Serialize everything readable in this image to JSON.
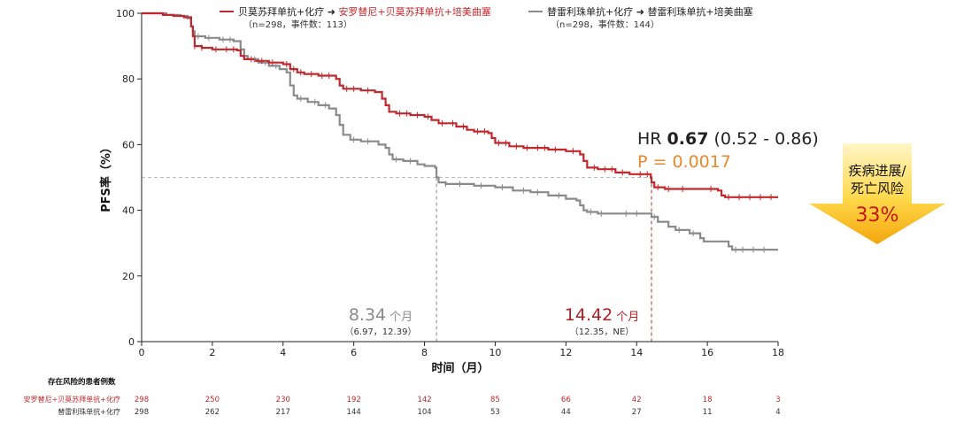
{
  "chart_data": {
    "type": "line",
    "subtype": "kaplan-meier",
    "title": "",
    "xlabel": "时间（月）",
    "ylabel": "PFS率（%）",
    "xlim": [
      0,
      18
    ],
    "ylim": [
      0,
      100
    ],
    "x_ticks": [
      0,
      2,
      4,
      6,
      8,
      10,
      12,
      14,
      16,
      18
    ],
    "y_ticks": [
      0,
      20,
      40,
      60,
      80,
      100
    ],
    "reference_line_y": 50,
    "series": [
      {
        "name": "贝莫苏拜单抗+化疗 ➜ 安罗替尼+贝莫苏拜单抗+培美曲塞",
        "legend_prefix": "贝莫苏拜单抗+化疗 ➜ ",
        "legend_suffix": "安罗替尼+贝莫苏拜单抗+培美曲塞",
        "legend_sub": "（n=298，事件数：113）",
        "color": "#c0282d",
        "median": "14.42",
        "median_x": 14.42,
        "median_unit": "个月",
        "median_ci": "（12.35，NE）",
        "steps": [
          [
            0,
            100
          ],
          [
            0.6,
            99.5
          ],
          [
            0.9,
            99.2
          ],
          [
            1.2,
            98.8
          ],
          [
            1.4,
            96
          ],
          [
            1.45,
            93
          ],
          [
            1.5,
            90
          ],
          [
            1.7,
            89.5
          ],
          [
            2.0,
            89
          ],
          [
            2.7,
            88.7
          ],
          [
            2.8,
            87
          ],
          [
            2.9,
            86
          ],
          [
            3.2,
            85.5
          ],
          [
            3.6,
            85
          ],
          [
            4.0,
            84.5
          ],
          [
            4.2,
            83
          ],
          [
            4.4,
            82
          ],
          [
            4.6,
            81.5
          ],
          [
            5.0,
            81
          ],
          [
            5.5,
            80
          ],
          [
            5.6,
            78
          ],
          [
            5.7,
            77
          ],
          [
            6.2,
            76.5
          ],
          [
            6.6,
            76
          ],
          [
            6.8,
            74
          ],
          [
            6.9,
            72
          ],
          [
            7.0,
            70
          ],
          [
            7.2,
            69.5
          ],
          [
            7.6,
            69
          ],
          [
            8.0,
            68.5
          ],
          [
            8.2,
            67.5
          ],
          [
            8.4,
            66.5
          ],
          [
            8.9,
            65.5
          ],
          [
            9.2,
            64.5
          ],
          [
            9.4,
            64
          ],
          [
            9.8,
            63.5
          ],
          [
            9.9,
            62
          ],
          [
            10.0,
            60.5
          ],
          [
            10.4,
            59.5
          ],
          [
            10.8,
            59
          ],
          [
            11.5,
            58.5
          ],
          [
            12.0,
            58
          ],
          [
            12.4,
            57
          ],
          [
            12.5,
            55
          ],
          [
            12.6,
            53
          ],
          [
            12.9,
            52.5
          ],
          [
            13.4,
            51.5
          ],
          [
            13.8,
            51
          ],
          [
            14.4,
            50
          ],
          [
            14.42,
            48.5
          ],
          [
            14.5,
            47
          ],
          [
            14.8,
            46.5
          ],
          [
            16.3,
            46
          ],
          [
            16.4,
            44.5
          ],
          [
            16.5,
            44
          ],
          [
            18,
            44
          ]
        ],
        "censor_x": [
          1.5,
          1.7,
          2.1,
          2.4,
          2.6,
          3.1,
          3.4,
          3.7,
          4.1,
          4.3,
          4.5,
          4.8,
          5.1,
          5.3,
          5.8,
          6.0,
          6.4,
          7.3,
          7.5,
          7.8,
          8.1,
          8.5,
          8.8,
          9.1,
          9.5,
          9.7,
          10.1,
          10.3,
          10.6,
          10.9,
          11.2,
          11.4,
          11.7,
          12.2,
          12.8,
          13.1,
          13.3,
          13.6,
          14.1,
          14.3,
          14.6,
          14.9,
          15.3,
          16.1,
          16.6,
          16.9,
          17.2,
          17.5,
          17.8
        ]
      },
      {
        "name": "替雷利珠单抗+化疗 ➜ 替雷利珠单抗+培美曲塞",
        "legend_prefix": "替雷利珠单抗+化疗 ➜ ",
        "legend_suffix": "替雷利珠单抗+培美曲塞",
        "legend_sub": "（n=298，事件数：144）",
        "color": "#8a8a8a",
        "median": "8.34",
        "median_x": 8.34,
        "median_unit": "个月",
        "median_ci": "（6.97，12.39）",
        "steps": [
          [
            0,
            100
          ],
          [
            0.7,
            99.5
          ],
          [
            1.1,
            99.2
          ],
          [
            1.3,
            98.5
          ],
          [
            1.4,
            96
          ],
          [
            1.45,
            94.5
          ],
          [
            1.5,
            93
          ],
          [
            1.8,
            92.5
          ],
          [
            2.2,
            92
          ],
          [
            2.6,
            91.5
          ],
          [
            2.8,
            89
          ],
          [
            2.9,
            87
          ],
          [
            3.0,
            86
          ],
          [
            3.3,
            85
          ],
          [
            3.6,
            84
          ],
          [
            3.9,
            83
          ],
          [
            4.1,
            82
          ],
          [
            4.2,
            78
          ],
          [
            4.3,
            75
          ],
          [
            4.4,
            74
          ],
          [
            4.7,
            73
          ],
          [
            5.0,
            72
          ],
          [
            5.3,
            71
          ],
          [
            5.5,
            69
          ],
          [
            5.6,
            66
          ],
          [
            5.7,
            63
          ],
          [
            5.9,
            61.5
          ],
          [
            6.2,
            61
          ],
          [
            6.7,
            60
          ],
          [
            6.9,
            59
          ],
          [
            7.0,
            57
          ],
          [
            7.1,
            55.5
          ],
          [
            7.4,
            55
          ],
          [
            7.8,
            54
          ],
          [
            8.0,
            53.5
          ],
          [
            8.3,
            53
          ],
          [
            8.34,
            50
          ],
          [
            8.4,
            48.5
          ],
          [
            8.6,
            48
          ],
          [
            9.4,
            47.5
          ],
          [
            10.0,
            47
          ],
          [
            10.5,
            46
          ],
          [
            11.0,
            45.5
          ],
          [
            11.5,
            44.5
          ],
          [
            12.0,
            43.5
          ],
          [
            12.3,
            43
          ],
          [
            12.4,
            41.5
          ],
          [
            12.5,
            40
          ],
          [
            12.6,
            39.5
          ],
          [
            12.9,
            39
          ],
          [
            13.4,
            39
          ],
          [
            14.42,
            38
          ],
          [
            14.6,
            36.5
          ],
          [
            14.9,
            35
          ],
          [
            15.1,
            34
          ],
          [
            15.5,
            33
          ],
          [
            15.8,
            31.5
          ],
          [
            15.9,
            30.5
          ],
          [
            16.5,
            30.5
          ],
          [
            16.6,
            29
          ],
          [
            16.7,
            28
          ],
          [
            18,
            28
          ]
        ],
        "censor_x": [
          1.6,
          1.9,
          2.3,
          2.5,
          3.2,
          3.5,
          3.8,
          4.5,
          4.9,
          5.2,
          6.0,
          6.4,
          7.2,
          7.6,
          8.6,
          9.0,
          9.6,
          10.2,
          10.8,
          11.2,
          11.8,
          12.7,
          13.0,
          13.7,
          14.0,
          14.5,
          15.2,
          15.6,
          16.8,
          17.0,
          17.3,
          17.6
        ]
      }
    ],
    "hr": {
      "label": "HR ",
      "value": "0.67",
      "ci": " (0.52 - 0.86)"
    },
    "p_value": "P = 0.0017",
    "risk_badge": {
      "line1": "疾病进展/",
      "line2": "死亡风险",
      "value": "33%"
    },
    "risk_table": {
      "title": "存在风险的患者例数",
      "time_points": [
        0,
        2,
        4,
        6,
        8,
        10,
        12,
        14,
        16,
        18
      ],
      "rows": [
        {
          "label": "安罗替尼+贝莫苏拜单抗+化疗",
          "color": "#c0282d",
          "values": [
            "298",
            "250",
            "230",
            "192",
            "142",
            "85",
            "66",
            "42",
            "18",
            "3"
          ]
        },
        {
          "label": "替雷利珠单抗+化疗",
          "color": "#333333",
          "values": [
            "298",
            "262",
            "217",
            "144",
            "104",
            "53",
            "44",
            "27",
            "11",
            "4"
          ]
        }
      ]
    }
  }
}
